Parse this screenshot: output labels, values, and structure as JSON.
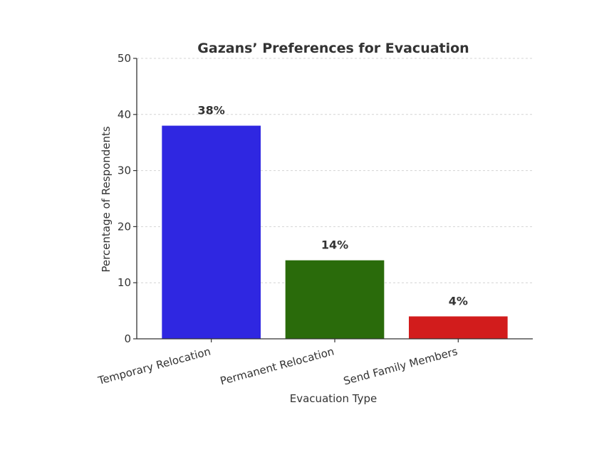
{
  "chart_data": {
    "type": "bar",
    "title": "Gazans’ Preferences for Evacuation",
    "xlabel": "Evacuation Type",
    "ylabel": "Percentage of Respondents",
    "categories": [
      "Temporary Relocation",
      "Permanent Relocation",
      "Send Family Members"
    ],
    "values": [
      38,
      14,
      4
    ],
    "data_labels": [
      "38%",
      "14%",
      "4%"
    ],
    "colors": [
      "#2f27e1",
      "#2a6b0b",
      "#d21c1c"
    ],
    "ylim": [
      0,
      50
    ],
    "yticks": [
      0,
      10,
      20,
      30,
      40,
      50
    ],
    "grid": true
  }
}
